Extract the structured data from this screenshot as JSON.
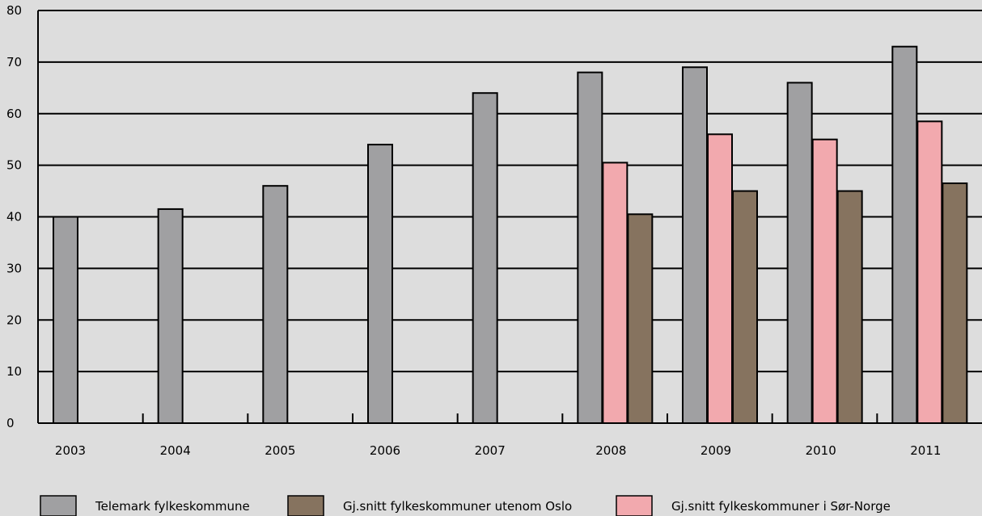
{
  "chart_data": {
    "type": "bar",
    "categories": [
      "2003",
      "2004",
      "2005",
      "2006",
      "2007",
      "2008",
      "2009",
      "2010",
      "2011"
    ],
    "series": [
      {
        "name": "Telemark fylkeskommune",
        "values": [
          40,
          41.5,
          46,
          54,
          64,
          68,
          69,
          66,
          73
        ],
        "color": "#a0a0a2"
      },
      {
        "name": "Gj.snitt fylkeskommuner i Sør-Norge",
        "values": [
          null,
          null,
          null,
          null,
          null,
          50.5,
          56,
          55,
          58.5
        ],
        "color": "#f2a9ae"
      },
      {
        "name": "Gj.snitt fylkeskommuner utenom Oslo",
        "values": [
          null,
          null,
          null,
          null,
          null,
          40.5,
          45,
          45,
          46.5
        ],
        "color": "#86735f"
      }
    ],
    "ylim": [
      0,
      80
    ],
    "yticks": [
      "0",
      "10",
      "20",
      "30",
      "40",
      "50",
      "60",
      "70",
      "80"
    ],
    "grid": true,
    "legend": {
      "placement": "bottom",
      "order": [
        0,
        2,
        1
      ]
    },
    "title": "",
    "xlabel": "",
    "ylabel": ""
  }
}
